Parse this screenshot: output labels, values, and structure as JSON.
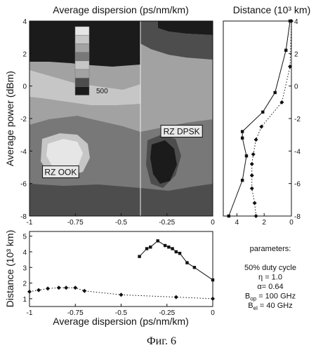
{
  "figure": {
    "caption": "Фиг. 6"
  },
  "contour_panel": {
    "title": "Average dispersion (ps/nm/km)",
    "ylabel": "Average power (dBm)",
    "x_ticks": [
      "-1",
      "-0.75",
      "-0.5",
      "-0.25",
      "0"
    ],
    "y_ticks": [
      "4",
      "2",
      "0",
      "-2",
      "-4",
      "-6",
      "-8"
    ],
    "xlim": [
      -1,
      0
    ],
    "ylim": [
      -8,
      4
    ],
    "scale_label": "500",
    "labels": [
      {
        "text": "RZ DPSK",
        "x": -0.17,
        "y": -2.8
      },
      {
        "text": "RZ OOK",
        "x": -0.83,
        "y": -5.3
      }
    ],
    "colors": {
      "level_0": "#1b1b1b",
      "level_1": "#4d4d4d",
      "level_2": "#787878",
      "level_3": "#a2a2a2",
      "level_4": "#c6c6c6",
      "level_5": "#e6e6e6"
    },
    "colorbar_levels": [
      5,
      4,
      3,
      2,
      4,
      3,
      1,
      0
    ]
  },
  "right_panel": {
    "title": "Distance (10³ km)",
    "x_ticks": [
      "4",
      "2",
      "0"
    ],
    "y_ticks": [
      "4",
      "2",
      "0",
      "-2",
      "-4",
      "-6",
      "-8"
    ]
  },
  "bottom_panel": {
    "ylabel": "Distance (10³ km)",
    "xlabel": "Average dispersion (ps/nm/km)",
    "x_ticks": [
      "-1",
      "-0.75",
      "-0.5",
      "-0.25",
      "0"
    ],
    "y_ticks": [
      "5",
      "4",
      "3",
      "2",
      "1"
    ]
  },
  "parameters": {
    "heading": "parameters:",
    "lines": [
      "50% duty cycle",
      "η = 1.0",
      "α= 0.64",
      "B",
      "B"
    ],
    "subs": [
      "",
      "",
      "",
      "op",
      "el"
    ],
    "tails": [
      "",
      "",
      "",
      " = 100 GHz",
      " = 40 GHz"
    ]
  },
  "chart_data": [
    {
      "type": "line",
      "panel": "right",
      "xlabel": "Distance (10³ km)",
      "ylabel": "Average power (dBm)",
      "xlim": [
        5,
        0
      ],
      "ylim": [
        -8,
        4
      ],
      "series": [
        {
          "style": "solid, square markers",
          "x": [
            4.6,
            3.6,
            3.3,
            3.6,
            3.6,
            2.1,
            1.2,
            0.4,
            0.1
          ],
          "y": [
            -8,
            -5.8,
            -4.3,
            -3.2,
            -2.8,
            -1.6,
            -0.4,
            2.2,
            4.0
          ]
        },
        {
          "style": "dotted, diamond markers",
          "x": [
            2.6,
            2.7,
            2.9,
            2.9,
            2.9,
            2.8,
            2.6,
            2.2,
            0.7,
            0.1,
            0.0
          ],
          "y": [
            -8,
            -7.2,
            -6.3,
            -5.5,
            -4.8,
            -4.2,
            -3.3,
            -2.5,
            -1.0,
            1.2,
            4.0
          ]
        }
      ]
    },
    {
      "type": "line",
      "panel": "bottom",
      "xlabel": "Average dispersion (ps/nm/km)",
      "ylabel": "Distance (10³ km)",
      "xlim": [
        -1,
        0
      ],
      "ylim": [
        0.5,
        5.3
      ],
      "series": [
        {
          "style": "solid, square markers",
          "x": [
            -0.4,
            -0.36,
            -0.34,
            -0.3,
            -0.26,
            -0.24,
            -0.22,
            -0.2,
            -0.18,
            -0.14,
            -0.1,
            0.0
          ],
          "y": [
            3.7,
            4.2,
            4.3,
            4.7,
            4.4,
            4.3,
            4.2,
            4.0,
            3.9,
            3.3,
            3.0,
            2.2
          ]
        },
        {
          "style": "dotted, diamond markers",
          "x": [
            -1.0,
            -0.95,
            -0.9,
            -0.84,
            -0.8,
            -0.75,
            -0.7,
            -0.5,
            -0.2,
            0.0
          ],
          "y": [
            1.45,
            1.55,
            1.65,
            1.7,
            1.7,
            1.7,
            1.5,
            1.25,
            1.1,
            1.0
          ]
        }
      ]
    }
  ]
}
